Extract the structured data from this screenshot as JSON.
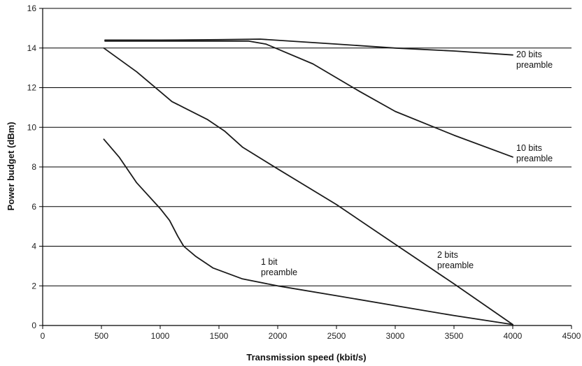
{
  "chart_data": {
    "type": "line",
    "title": "",
    "xlabel": "Transmission speed (kbit/s)",
    "ylabel": "Power budget (dBm)",
    "xlim": [
      0,
      4500
    ],
    "ylim": [
      0,
      16
    ],
    "xticks": [
      0,
      500,
      1000,
      1500,
      2000,
      2500,
      3000,
      3500,
      4000,
      4500
    ],
    "yticks": [
      0,
      2,
      4,
      6,
      8,
      10,
      12,
      14,
      16
    ],
    "grid": "horizontal",
    "series": [
      {
        "name": "20 bits preamble",
        "label_lines": [
          "20 bits",
          "preamble"
        ],
        "x": [
          530,
          1000,
          1500,
          1850,
          2500,
          3000,
          3500,
          4000
        ],
        "y": [
          14.4,
          14.4,
          14.42,
          14.45,
          14.2,
          14.0,
          13.85,
          13.65
        ]
      },
      {
        "name": "10 bits preamble",
        "label_lines": [
          "10 bits",
          "preamble"
        ],
        "x": [
          530,
          1000,
          1500,
          1750,
          1900,
          2300,
          2700,
          3000,
          3500,
          4000
        ],
        "y": [
          14.35,
          14.35,
          14.35,
          14.35,
          14.2,
          13.2,
          11.8,
          10.8,
          9.6,
          8.5
        ]
      },
      {
        "name": "2 bits preamble",
        "label_lines": [
          "2 bits",
          "preamble"
        ],
        "x": [
          520,
          800,
          1000,
          1100,
          1200,
          1400,
          1550,
          1700,
          2000,
          2500,
          3000,
          3500,
          4000
        ],
        "y": [
          14.0,
          12.8,
          11.8,
          11.3,
          11.0,
          10.4,
          9.8,
          9.0,
          7.9,
          6.1,
          4.1,
          2.1,
          0.05
        ]
      },
      {
        "name": "1 bit preamble",
        "label_lines": [
          "1 bit",
          "preamble"
        ],
        "x": [
          520,
          650,
          800,
          1000,
          1080,
          1150,
          1200,
          1300,
          1450,
          1700,
          2000,
          2500,
          3000,
          3500,
          4000
        ],
        "y": [
          9.4,
          8.5,
          7.2,
          5.9,
          5.3,
          4.5,
          4.0,
          3.5,
          2.9,
          2.35,
          2.0,
          1.5,
          1.0,
          0.5,
          0.05
        ]
      }
    ]
  }
}
